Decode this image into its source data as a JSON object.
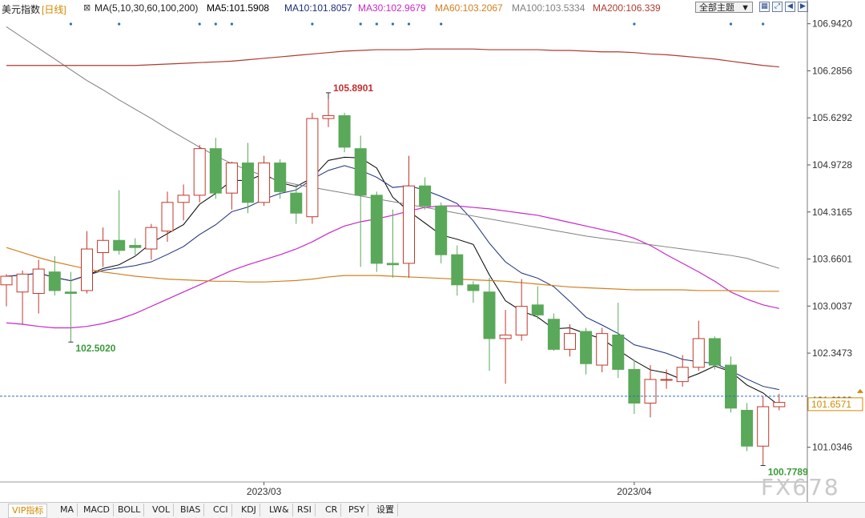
{
  "header": {
    "symbol": "美元指数",
    "period": "[日线]",
    "ma_title": "MA(5,10,30,60,100,200)",
    "ma_items": [
      {
        "label": "MA5:101.5908",
        "color": "#000000"
      },
      {
        "label": "MA10:101.8057",
        "color": "#1a2f78"
      },
      {
        "label": "MA30:102.9679",
        "color": "#c828c8"
      },
      {
        "label": "MA60:103.2067",
        "color": "#d08020"
      },
      {
        "label": "MA100:103.5334",
        "color": "#808080"
      },
      {
        "label": "MA200:106.339",
        "color": "#b03a2e"
      }
    ],
    "theme_select": "全部主题",
    "tool_icons": [
      "grid-icon",
      "expand-icon",
      "back-icon",
      "next-icon"
    ]
  },
  "chart_data": {
    "type": "candlestick",
    "ylim": [
      100.55,
      107.05
    ],
    "yticks": [
      "106.9420",
      "106.2856",
      "105.6292",
      "104.9728",
      "104.3165",
      "103.6601",
      "103.0037",
      "102.3473",
      "101.6909",
      "101.0346"
    ],
    "xticks": [
      {
        "label": "2023/03",
        "index": 16
      },
      {
        "label": "2023/04",
        "index": 39
      }
    ],
    "current_price": "101.6571",
    "annotations": [
      {
        "label": "105.8901",
        "index": 20,
        "value": 105.8901,
        "color": "#c03030"
      },
      {
        "label": "102.5020",
        "index": 4,
        "value": 102.502,
        "color": "#3a9a3a"
      },
      {
        "label": "100.7789",
        "index": 47,
        "value": 100.7789,
        "color": "#3a9a3a"
      }
    ],
    "candles": [
      {
        "o": 103.3,
        "h": 103.45,
        "l": 103.0,
        "c": 103.42
      },
      {
        "o": 103.2,
        "h": 103.5,
        "l": 102.75,
        "c": 103.45
      },
      {
        "o": 103.18,
        "h": 103.65,
        "l": 102.9,
        "c": 103.52
      },
      {
        "o": 103.48,
        "h": 103.7,
        "l": 103.15,
        "c": 103.22
      },
      {
        "o": 103.2,
        "h": 103.48,
        "l": 102.5,
        "c": 103.18
      },
      {
        "o": 103.22,
        "h": 104.05,
        "l": 103.18,
        "c": 103.8
      },
      {
        "o": 103.75,
        "h": 104.1,
        "l": 103.55,
        "c": 103.92
      },
      {
        "o": 103.92,
        "h": 104.62,
        "l": 103.72,
        "c": 103.78
      },
      {
        "o": 103.85,
        "h": 103.95,
        "l": 103.7,
        "c": 103.82
      },
      {
        "o": 103.8,
        "h": 104.15,
        "l": 103.65,
        "c": 104.1
      },
      {
        "o": 104.05,
        "h": 104.6,
        "l": 103.9,
        "c": 104.45
      },
      {
        "o": 104.45,
        "h": 104.7,
        "l": 104.2,
        "c": 104.55
      },
      {
        "o": 104.55,
        "h": 105.25,
        "l": 104.45,
        "c": 105.2
      },
      {
        "o": 105.2,
        "h": 105.35,
        "l": 104.5,
        "c": 104.58
      },
      {
        "o": 104.58,
        "h": 105.02,
        "l": 104.35,
        "c": 105.0
      },
      {
        "o": 105.0,
        "h": 105.28,
        "l": 104.3,
        "c": 104.45
      },
      {
        "o": 104.45,
        "h": 105.1,
        "l": 104.4,
        "c": 105.0
      },
      {
        "o": 105.0,
        "h": 105.05,
        "l": 104.5,
        "c": 104.6
      },
      {
        "o": 104.58,
        "h": 104.7,
        "l": 104.15,
        "c": 104.3
      },
      {
        "o": 104.25,
        "h": 105.7,
        "l": 104.15,
        "c": 105.62
      },
      {
        "o": 105.62,
        "h": 105.89,
        "l": 105.5,
        "c": 105.66
      },
      {
        "o": 105.66,
        "h": 105.7,
        "l": 105.15,
        "c": 105.22
      },
      {
        "o": 105.2,
        "h": 105.38,
        "l": 103.55,
        "c": 104.55
      },
      {
        "o": 104.55,
        "h": 104.6,
        "l": 103.48,
        "c": 103.6
      },
      {
        "o": 103.6,
        "h": 104.35,
        "l": 103.4,
        "c": 103.58
      },
      {
        "o": 103.6,
        "h": 105.1,
        "l": 103.4,
        "c": 104.68
      },
      {
        "o": 104.68,
        "h": 104.8,
        "l": 104.35,
        "c": 104.4
      },
      {
        "o": 104.4,
        "h": 104.45,
        "l": 103.6,
        "c": 103.72
      },
      {
        "o": 103.72,
        "h": 103.85,
        "l": 103.15,
        "c": 103.3
      },
      {
        "o": 103.3,
        "h": 103.35,
        "l": 103.05,
        "c": 103.22
      },
      {
        "o": 103.2,
        "h": 103.4,
        "l": 102.1,
        "c": 102.55
      },
      {
        "o": 102.55,
        "h": 102.95,
        "l": 101.92,
        "c": 102.6
      },
      {
        "o": 102.6,
        "h": 103.38,
        "l": 102.52,
        "c": 103.0
      },
      {
        "o": 103.02,
        "h": 103.28,
        "l": 102.82,
        "c": 102.88
      },
      {
        "o": 102.82,
        "h": 102.9,
        "l": 102.38,
        "c": 102.4
      },
      {
        "o": 102.4,
        "h": 102.75,
        "l": 102.3,
        "c": 102.62
      },
      {
        "o": 102.65,
        "h": 102.7,
        "l": 102.05,
        "c": 102.2
      },
      {
        "o": 102.18,
        "h": 102.7,
        "l": 102.08,
        "c": 102.62
      },
      {
        "o": 102.6,
        "h": 103.05,
        "l": 102.0,
        "c": 102.12
      },
      {
        "o": 102.12,
        "h": 102.25,
        "l": 101.5,
        "c": 101.65
      },
      {
        "o": 101.65,
        "h": 102.18,
        "l": 101.45,
        "c": 101.98
      },
      {
        "o": 101.98,
        "h": 102.12,
        "l": 101.85,
        "c": 101.98
      },
      {
        "o": 101.95,
        "h": 102.32,
        "l": 101.88,
        "c": 102.15
      },
      {
        "o": 102.15,
        "h": 102.8,
        "l": 102.1,
        "c": 102.55
      },
      {
        "o": 102.55,
        "h": 102.58,
        "l": 102.12,
        "c": 102.18
      },
      {
        "o": 102.18,
        "h": 102.3,
        "l": 101.52,
        "c": 101.58
      },
      {
        "o": 101.55,
        "h": 101.65,
        "l": 100.98,
        "c": 101.05
      },
      {
        "o": 101.05,
        "h": 101.75,
        "l": 100.78,
        "c": 101.6
      },
      {
        "o": 101.6,
        "h": 101.78,
        "l": 101.55,
        "c": 101.66
      }
    ],
    "colors": {
      "up": "#c0392b",
      "down": "#5aa85a"
    }
  },
  "tabs": [
    "VIP指标",
    "MA",
    "MACD",
    "BOLL",
    "VOL",
    "BIAS",
    "CCI",
    "KDJ",
    "LW&",
    "RSI",
    "CR",
    "PSY",
    "设置"
  ],
  "watermark": "FX678"
}
